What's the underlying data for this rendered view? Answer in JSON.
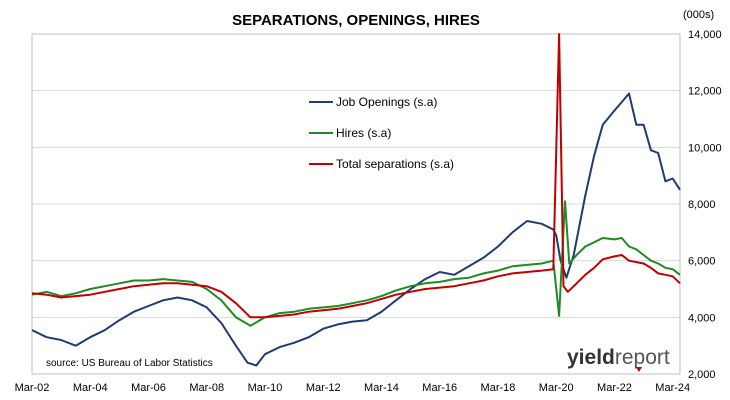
{
  "chart_data": {
    "type": "line",
    "title": "SEPARATIONS, OPENINGS, HIRES",
    "unit_label": "(000s)",
    "source": "source: US Bureau of Labor Statistics",
    "logo": {
      "part1": "yield",
      "part2": "report"
    },
    "y_axis_side": "right",
    "ylim": [
      2000,
      14000
    ],
    "yticks": [
      "2,000",
      "4,000",
      "6,000",
      "8,000",
      "10,000",
      "12,000",
      "14,000"
    ],
    "ytick_values": [
      2000,
      4000,
      6000,
      8000,
      10000,
      12000,
      14000
    ],
    "xlim": [
      2002.0,
      2024.25
    ],
    "xticks": [
      "Mar-02",
      "Mar-04",
      "Mar-06",
      "Mar-08",
      "Mar-10",
      "Mar-12",
      "Mar-14",
      "Mar-16",
      "Mar-18",
      "Mar-20",
      "Mar-22",
      "Mar-24"
    ],
    "xtick_values": [
      2002.0,
      2004.0,
      2006.0,
      2008.0,
      2010.0,
      2012.0,
      2014.0,
      2016.0,
      2018.0,
      2020.0,
      2022.0,
      2024.0
    ],
    "grid": {
      "horizontal": true,
      "vertical": false
    },
    "legend_position": "upper-center",
    "series": [
      {
        "name": "Job Openings (s.a)",
        "color": "#1f3b73",
        "x": [
          2002.0,
          2002.5,
          2003.0,
          2003.5,
          2004.0,
          2004.5,
          2005.0,
          2005.5,
          2006.0,
          2006.5,
          2007.0,
          2007.5,
          2008.0,
          2008.5,
          2009.0,
          2009.4,
          2009.7,
          2010.0,
          2010.5,
          2011.0,
          2011.5,
          2012.0,
          2012.5,
          2013.0,
          2013.5,
          2014.0,
          2014.5,
          2015.0,
          2015.5,
          2016.0,
          2016.5,
          2017.0,
          2017.5,
          2018.0,
          2018.5,
          2019.0,
          2019.5,
          2019.9,
          2020.0,
          2020.15,
          2020.35,
          2020.6,
          2021.0,
          2021.3,
          2021.6,
          2022.0,
          2022.25,
          2022.5,
          2022.75,
          2023.0,
          2023.25,
          2023.5,
          2023.75,
          2024.0,
          2024.25
        ],
        "values": [
          3550,
          3300,
          3200,
          3000,
          3300,
          3550,
          3900,
          4200,
          4400,
          4600,
          4700,
          4600,
          4350,
          3800,
          3000,
          2400,
          2300,
          2700,
          2950,
          3100,
          3300,
          3600,
          3750,
          3850,
          3900,
          4200,
          4600,
          5000,
          5350,
          5600,
          5500,
          5800,
          6100,
          6500,
          7000,
          7400,
          7300,
          7100,
          6900,
          6000,
          5400,
          6200,
          8300,
          9700,
          10800,
          11300,
          11600,
          11900,
          10800,
          10800,
          9900,
          9800,
          8800,
          8900,
          8500
        ]
      },
      {
        "name": "Hires (s.a)",
        "color": "#1e8b24",
        "x": [
          2002.0,
          2002.5,
          2003.0,
          2003.5,
          2004.0,
          2004.5,
          2005.0,
          2005.5,
          2006.0,
          2006.5,
          2007.0,
          2007.5,
          2008.0,
          2008.5,
          2009.0,
          2009.5,
          2010.0,
          2010.5,
          2011.0,
          2011.5,
          2012.0,
          2012.5,
          2013.0,
          2013.5,
          2014.0,
          2014.5,
          2015.0,
          2015.5,
          2016.0,
          2016.5,
          2017.0,
          2017.5,
          2018.0,
          2018.5,
          2019.0,
          2019.5,
          2019.9,
          2020.1,
          2020.3,
          2020.45,
          2020.7,
          2021.0,
          2021.3,
          2021.6,
          2022.0,
          2022.25,
          2022.5,
          2022.75,
          2023.0,
          2023.25,
          2023.5,
          2023.75,
          2024.0,
          2024.25
        ],
        "values": [
          4800,
          4900,
          4750,
          4850,
          5000,
          5100,
          5200,
          5300,
          5300,
          5350,
          5300,
          5250,
          5000,
          4600,
          4000,
          3700,
          4000,
          4150,
          4200,
          4300,
          4350,
          4400,
          4500,
          4600,
          4750,
          4950,
          5100,
          5200,
          5250,
          5350,
          5400,
          5550,
          5650,
          5800,
          5850,
          5900,
          6000,
          4050,
          8100,
          5900,
          6200,
          6500,
          6650,
          6800,
          6750,
          6800,
          6500,
          6400,
          6200,
          6000,
          5900,
          5750,
          5700,
          5500
        ]
      },
      {
        "name": "Total separations (s.a)",
        "color": "#c00000",
        "x": [
          2002.0,
          2002.5,
          2003.0,
          2003.5,
          2004.0,
          2004.5,
          2005.0,
          2005.5,
          2006.0,
          2006.5,
          2007.0,
          2007.5,
          2008.0,
          2008.5,
          2009.0,
          2009.5,
          2010.0,
          2010.5,
          2011.0,
          2011.5,
          2012.0,
          2012.5,
          2013.0,
          2013.5,
          2014.0,
          2014.5,
          2015.0,
          2015.5,
          2016.0,
          2016.5,
          2017.0,
          2017.5,
          2018.0,
          2018.5,
          2019.0,
          2019.5,
          2019.9,
          2020.1,
          2020.25,
          2020.4,
          2020.6,
          2021.0,
          2021.3,
          2021.6,
          2022.0,
          2022.25,
          2022.5,
          2022.75,
          2023.0,
          2023.25,
          2023.5,
          2023.75,
          2024.0,
          2024.25
        ],
        "values": [
          4850,
          4800,
          4700,
          4750,
          4800,
          4900,
          5000,
          5100,
          5150,
          5200,
          5200,
          5150,
          5100,
          4900,
          4500,
          4000,
          4000,
          4050,
          4100,
          4200,
          4250,
          4300,
          4400,
          4500,
          4650,
          4800,
          4900,
          5000,
          5050,
          5100,
          5200,
          5300,
          5450,
          5550,
          5600,
          5650,
          5700,
          14000,
          5100,
          4900,
          5100,
          5500,
          5750,
          6050,
          6150,
          6200,
          6000,
          5950,
          5900,
          5750,
          5550,
          5500,
          5450,
          5200
        ]
      }
    ]
  }
}
